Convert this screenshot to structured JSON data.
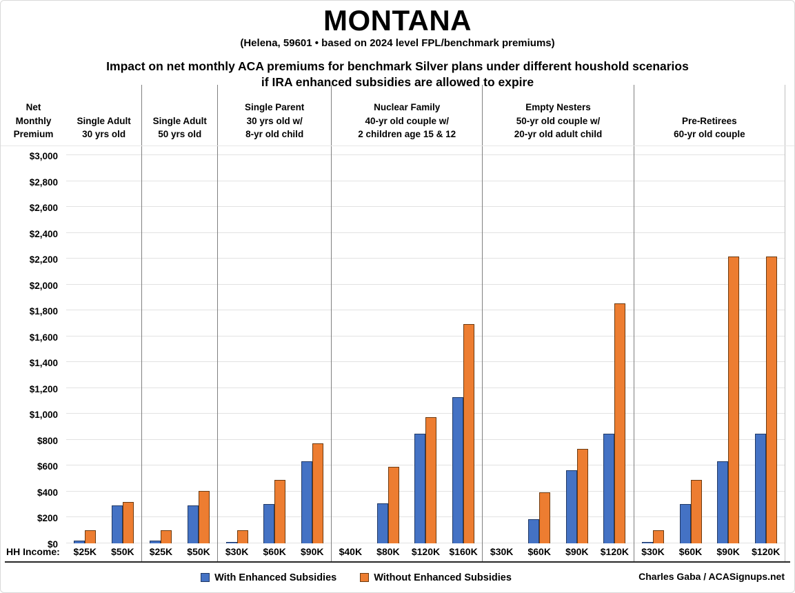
{
  "header": {
    "title": "MONTANA",
    "subtitle": "(Helena, 59601 • based on 2024 level FPL/benchmark premiums)",
    "description_line1": "Impact on net monthly ACA premiums for benchmark Silver plans under different houshold scenarios",
    "description_line2": "if IRA enhanced subsidies are allowed to expire"
  },
  "axis": {
    "y_title_lines": [
      "Net",
      "Monthly",
      "Premium"
    ],
    "x_label": "HH Income:"
  },
  "legend": {
    "with_label": "With Enhanced Subsidies",
    "without_label": "Without Enhanced Subsidies"
  },
  "footer": {
    "credit": "Charles Gaba / ACASignups.net"
  },
  "colors": {
    "with_subsidies": "#4472c4",
    "without_subsidies": "#ed7d31",
    "gridline": "#e2e2e2",
    "divider": "#7f7f7f"
  },
  "chart_data": {
    "type": "bar",
    "title": "MONTANA",
    "subtitle": "(Helena, 59601 • based on 2024 level FPL/benchmark premiums)",
    "ylabel": "Net Monthly Premium",
    "xlabel": "HH Income",
    "ylim": [
      0,
      3000
    ],
    "ytick_step": 200,
    "ytick_labels": [
      "$0",
      "$200",
      "$400",
      "$600",
      "$800",
      "$1,000",
      "$1,200",
      "$1,400",
      "$1,600",
      "$1,800",
      "$2,000",
      "$2,200",
      "$2,400",
      "$2,600",
      "$2,800",
      "$3,000"
    ],
    "ytick_values": [
      0,
      200,
      400,
      600,
      800,
      1000,
      1200,
      1400,
      1600,
      1800,
      2000,
      2200,
      2400,
      2600,
      2800,
      3000
    ],
    "grid": true,
    "legend_position": "bottom",
    "series_names": [
      "With Enhanced Subsidies",
      "Without Enhanced Subsidies"
    ],
    "groups": [
      {
        "label_lines": [
          "Single Adult",
          "30 yrs old"
        ],
        "categories": [
          "$25K",
          "$50K"
        ],
        "series": [
          {
            "name": "With Enhanced Subsidies",
            "values": [
              20,
              295
            ]
          },
          {
            "name": "Without Enhanced Subsidies",
            "values": [
              100,
              320
            ]
          }
        ]
      },
      {
        "label_lines": [
          "Single Adult",
          "50 yrs old"
        ],
        "categories": [
          "$25K",
          "$50K"
        ],
        "series": [
          {
            "name": "With Enhanced Subsidies",
            "values": [
              20,
              295
            ]
          },
          {
            "name": "Without Enhanced Subsidies",
            "values": [
              100,
              405
            ]
          }
        ]
      },
      {
        "label_lines": [
          "Single Parent",
          "30 yrs old w/",
          "8-yr old child"
        ],
        "categories": [
          "$30K",
          "$60K",
          "$90K"
        ],
        "series": [
          {
            "name": "With Enhanced Subsidies",
            "values": [
              10,
              305,
              635
            ]
          },
          {
            "name": "Without Enhanced Subsidies",
            "values": [
              100,
              490,
              775
            ]
          }
        ]
      },
      {
        "label_lines": [
          "Nuclear Family",
          "40-yr old couple w/",
          "2 children age 15 & 12"
        ],
        "categories": [
          "$40K",
          "$80K",
          "$120K",
          "$160K"
        ],
        "series": [
          {
            "name": "With Enhanced Subsidies",
            "values": [
              0,
              310,
              845,
              1130
            ]
          },
          {
            "name": "Without Enhanced Subsidies",
            "values": [
              0,
              590,
              975,
              1695
            ]
          }
        ]
      },
      {
        "label_lines": [
          "Empty Nesters",
          "50-yr old couple w/",
          "20-yr old adult child"
        ],
        "categories": [
          "$30K",
          "$60K",
          "$90K",
          "$120K"
        ],
        "series": [
          {
            "name": "With Enhanced Subsidies",
            "values": [
              0,
              185,
              565,
              845
            ]
          },
          {
            "name": "Without Enhanced Subsidies",
            "values": [
              0,
              395,
              730,
              1855
            ]
          }
        ]
      },
      {
        "label_lines": [
          "Pre-Retirees",
          "60-yr old couple"
        ],
        "categories": [
          "$30K",
          "$60K",
          "$90K",
          "$120K"
        ],
        "series": [
          {
            "name": "With Enhanced Subsidies",
            "values": [
              10,
              305,
              635,
              845
            ]
          },
          {
            "name": "Without Enhanced Subsidies",
            "values": [
              100,
              490,
              2215,
              2215
            ]
          }
        ]
      }
    ]
  }
}
